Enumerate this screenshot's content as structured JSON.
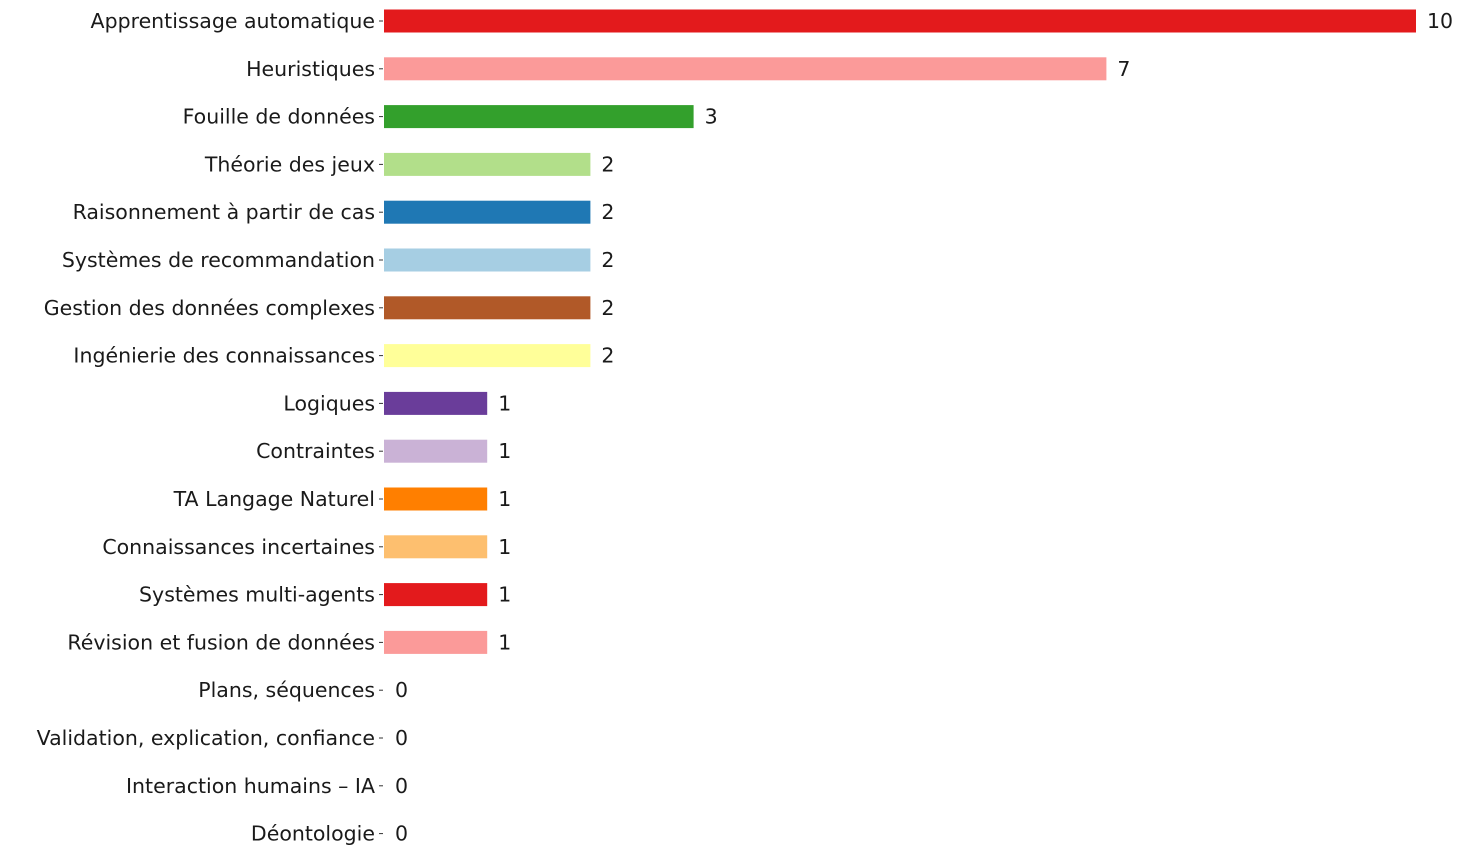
{
  "chart_data": {
    "type": "bar",
    "orientation": "horizontal",
    "title": "",
    "xlabel": "",
    "ylabel": "",
    "xlim": [
      0,
      10
    ],
    "grid": false,
    "legend": "none",
    "value_labels": true,
    "categories": [
      "Apprentissage automatique",
      "Heuristiques",
      "Fouille de données",
      "Théorie des jeux",
      "Raisonnement à partir de cas",
      "Systèmes de recommandation",
      "Gestion des données complexes",
      "Ingénierie des connaissances",
      "Logiques",
      "Contraintes",
      "TA Langage Naturel",
      "Connaissances incertaines",
      "Systèmes multi-agents",
      "Révision et fusion de données",
      "Plans, séquences",
      "Validation, explication, confiance",
      "Interaction humains – IA",
      "Déontologie"
    ],
    "values": [
      10,
      7,
      3,
      2,
      2,
      2,
      2,
      2,
      1,
      1,
      1,
      1,
      1,
      1,
      0,
      0,
      0,
      0
    ],
    "colors": [
      "#e31a1c",
      "#fb9a99",
      "#33a02c",
      "#b2df8a",
      "#1f78b4",
      "#a6cee3",
      "#b15928",
      "#ffff99",
      "#6a3d9a",
      "#cab2d6",
      "#ff7f00",
      "#fdbf6f",
      "#e31a1c",
      "#fb9a99",
      "#33a02c",
      "#b2df8a",
      "#1f78b4",
      "#a6cee3"
    ]
  }
}
